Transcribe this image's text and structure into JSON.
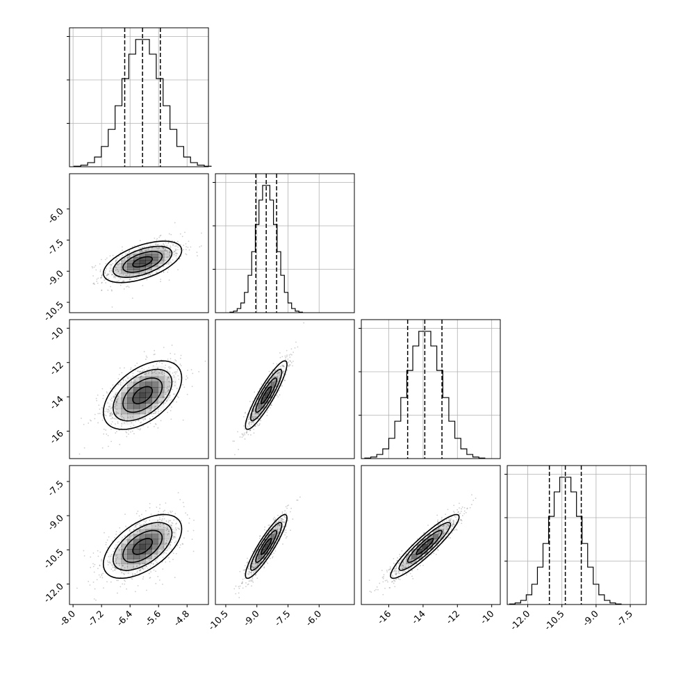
{
  "chart_data": {
    "type": "corner",
    "parameters": [
      {
        "mean": -6.05,
        "sd": 0.55,
        "q16": -6.55,
        "q50": -6.05,
        "q84": -5.55,
        "range": [
          -8.1,
          -4.2
        ],
        "ticks": [
          "-8.0",
          "-7.2",
          "-6.4",
          "-5.6",
          "-4.8"
        ],
        "tick_values": [
          -8.0,
          -7.2,
          -6.4,
          -5.6,
          -4.8
        ]
      },
      {
        "mean": -8.55,
        "sd": 0.5,
        "q16": -9.05,
        "q50": -8.55,
        "q84": -8.05,
        "range": [
          -11.0,
          -4.3
        ],
        "ticks": [
          "-10.5",
          "-9.0",
          "-7.5",
          "-6.0"
        ],
        "tick_values": [
          -10.5,
          -9.0,
          -7.5,
          -6.0
        ]
      },
      {
        "mean": -13.9,
        "sd": 1.0,
        "q16": -14.9,
        "q50": -13.9,
        "q84": -12.9,
        "range": [
          -17.6,
          -9.5
        ],
        "ticks": [
          "-16",
          "-14",
          "-12",
          "-10"
        ],
        "tick_values": [
          -16,
          -14,
          -12,
          -10
        ]
      },
      {
        "mean": -10.35,
        "sd": 0.7,
        "q16": -11.05,
        "q50": -10.35,
        "q84": -9.65,
        "range": [
          -12.9,
          -6.8
        ],
        "ticks": [
          "-12.0",
          "-10.5",
          "-9.0",
          "-7.5"
        ],
        "tick_values": [
          -12.0,
          -10.5,
          -9.0,
          -7.5
        ]
      }
    ],
    "correlations": {
      "1-0": 0.55,
      "2-0": 0.5,
      "2-1": 0.9,
      "3-0": 0.55,
      "3-1": 0.9,
      "3-2": 0.92
    },
    "histogram_bins": 20,
    "contour_levels": [
      0.5,
      1.0,
      1.5,
      2.0
    ],
    "grid": true,
    "quantiles": [
      0.16,
      0.5,
      0.84
    ],
    "colors": {
      "line": "#000000",
      "grid": "#b0b0b0",
      "points": "#707070",
      "density": "#000000"
    }
  }
}
